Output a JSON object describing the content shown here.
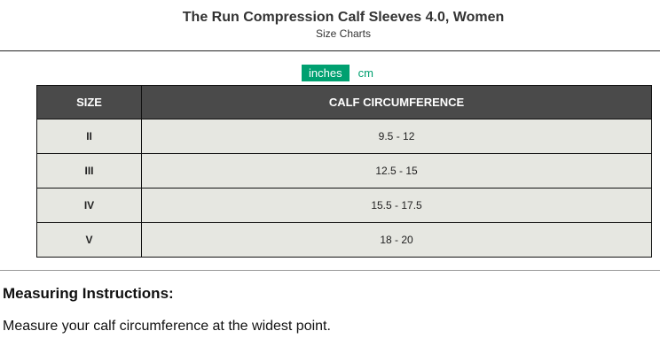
{
  "header": {
    "title": "The Run Compression Calf Sleeves 4.0, Women",
    "subtitle": "Size Charts"
  },
  "units": {
    "active": "inches",
    "inactive": "cm",
    "accent": "#00a070"
  },
  "table": {
    "headers": [
      "SIZE",
      "CALF CIRCUMFERENCE"
    ],
    "rows": [
      [
        "II",
        "9.5 - 12"
      ],
      [
        "III",
        "12.5 - 15"
      ],
      [
        "IV",
        "15.5 - 17.5"
      ],
      [
        "V",
        "18 - 20"
      ]
    ]
  },
  "instructions": {
    "heading": "Measuring Instructions:",
    "text": "Measure your calf circumference at the widest point."
  }
}
